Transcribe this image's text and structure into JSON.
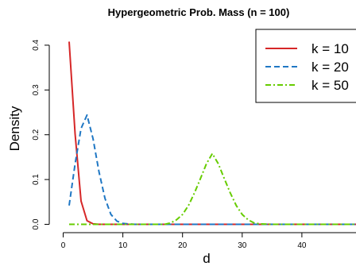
{
  "chart_data": {
    "type": "line",
    "title": "Hypergeometric Prob. Mass (n = 100)",
    "xlabel": "d",
    "ylabel": "Density",
    "xlim": [
      -1,
      52
    ],
    "ylim": [
      -0.008,
      0.43
    ],
    "xticks": [
      0,
      10,
      20,
      30,
      40,
      50
    ],
    "yticks": [
      0.0,
      0.1,
      0.2,
      0.3,
      0.4
    ],
    "ytick_labels": [
      "0.0",
      "0.1",
      "0.2",
      "0.3",
      "0.4"
    ],
    "grid": false,
    "legend_position": "top-right",
    "series": [
      {
        "name": "k = 10",
        "color": "#d62728",
        "dash": "solid",
        "x": [
          1,
          2,
          3,
          4,
          5,
          6,
          8,
          10,
          15,
          20,
          30,
          40,
          50,
          60
        ],
        "y": [
          0.408,
          0.202,
          0.052,
          0.008,
          0.001,
          0.0,
          0.0,
          0.0,
          0.0,
          0.0,
          0.0,
          0.0,
          0.0,
          0.0
        ]
      },
      {
        "name": "k = 20",
        "color": "#1f77c4",
        "dash": "dashed",
        "x": [
          1,
          2,
          3,
          4,
          5,
          6,
          7,
          8,
          9,
          10,
          12,
          15,
          20,
          30,
          40,
          50,
          60
        ],
        "y": [
          0.042,
          0.135,
          0.214,
          0.244,
          0.191,
          0.117,
          0.058,
          0.022,
          0.007,
          0.002,
          0.0,
          0.0,
          0.0,
          0.0,
          0.0,
          0.0,
          0.0
        ]
      },
      {
        "name": "k = 50",
        "color": "#66cc00",
        "dash": "dashdot",
        "x": [
          1,
          5,
          10,
          15,
          17,
          18,
          19,
          20,
          21,
          22,
          23,
          24,
          25,
          26,
          27,
          28,
          29,
          30,
          31,
          32,
          33,
          35,
          40,
          50,
          60
        ],
        "y": [
          0.0,
          0.0,
          0.0,
          0.0,
          0.0,
          0.003,
          0.01,
          0.022,
          0.042,
          0.07,
          0.102,
          0.135,
          0.158,
          0.135,
          0.102,
          0.07,
          0.042,
          0.022,
          0.01,
          0.003,
          0.001,
          0.0,
          0.0,
          0.0,
          0.0
        ]
      }
    ]
  }
}
